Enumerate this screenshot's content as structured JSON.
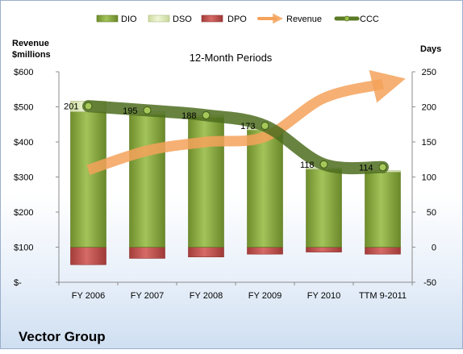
{
  "chart_data": {
    "type": "bar",
    "title": "12-Month Periods",
    "company": "Vector Group",
    "categories": [
      "FY 2006",
      "FY 2007",
      "FY 2008",
      "FY 2009",
      "FY 2010",
      "TTM 9-2011"
    ],
    "left_axis": {
      "label_line1": "Revenue",
      "label_line2": "$millions",
      "ylim": [
        0,
        600
      ],
      "ticks": [
        0,
        100,
        200,
        300,
        400,
        500,
        600
      ],
      "tick_labels": [
        "$-",
        "$100",
        "$200",
        "$300",
        "$400",
        "$500",
        "$600"
      ]
    },
    "right_axis": {
      "label": "Days",
      "ylim": [
        -50,
        250
      ],
      "ticks": [
        -50,
        0,
        50,
        100,
        150,
        200,
        250
      ],
      "tick_labels": [
        "-50",
        "0",
        "50",
        "100",
        "150",
        "200",
        "250"
      ]
    },
    "series": [
      {
        "name": "DIO",
        "kind": "bar",
        "axis": "right",
        "color": "#8cad3f",
        "values": [
          193,
          189,
          185,
          167,
          111,
          107
        ]
      },
      {
        "name": "DSO",
        "kind": "bar",
        "axis": "right",
        "color": "#e4efc4",
        "values": [
          15,
          4,
          3,
          3,
          2,
          2
        ]
      },
      {
        "name": "DPO",
        "kind": "bar",
        "axis": "right",
        "color": "#c0504d",
        "values": [
          -25,
          -16,
          -14,
          -10,
          -7,
          -10
        ]
      },
      {
        "name": "Revenue",
        "kind": "line",
        "axis": "left",
        "color": "#f5a25a",
        "values": [
          320,
          375,
          400,
          415,
          525,
          565
        ]
      },
      {
        "name": "CCC",
        "kind": "line",
        "axis": "right",
        "color": "#5a7a26",
        "values": [
          201,
          195,
          188,
          173,
          118,
          114
        ],
        "labels": [
          "201",
          "195",
          "188",
          "173",
          "118",
          "114"
        ]
      }
    ],
    "legend_position": "top",
    "grid": false
  }
}
